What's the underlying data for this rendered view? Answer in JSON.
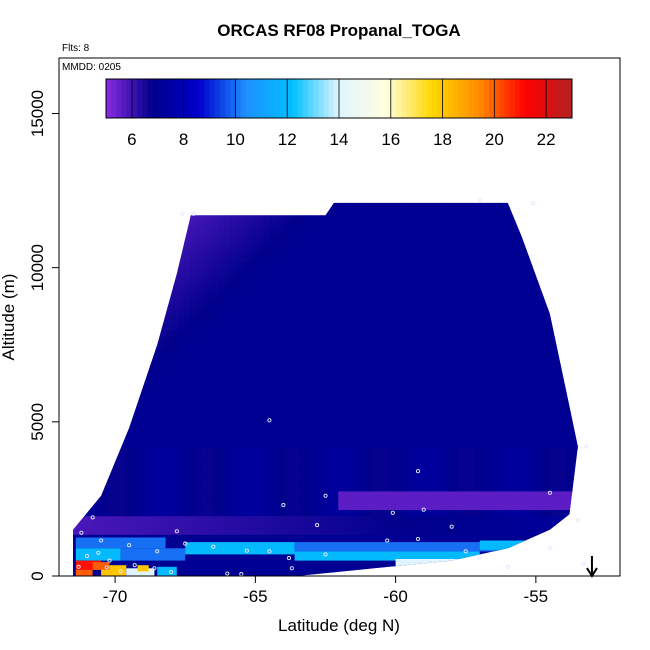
{
  "chart_data": {
    "type": "heatmap",
    "title": "ORCAS RF08 Propanal_TOGA",
    "flights_note": "Flts: 8",
    "date_note": "MMDD: 0205",
    "xlabel": "Latitude (deg N)",
    "ylabel": "Altitude (m)",
    "xlim": [
      -72,
      -52
    ],
    "ylim": [
      0,
      16800
    ],
    "x_ticks": [
      -70,
      -65,
      -60,
      -55
    ],
    "x_tick_labels": [
      "-70",
      "-65",
      "-60",
      "-55"
    ],
    "y_ticks": [
      0,
      5000,
      10000,
      15000
    ],
    "y_tick_labels": [
      "0",
      "5000",
      "10000",
      "15000"
    ],
    "colorbar": {
      "range": [
        5,
        23
      ],
      "ticks": [
        6,
        8,
        10,
        12,
        14,
        16,
        18,
        20,
        22
      ],
      "tick_labels": [
        "6",
        "8",
        "10",
        "12",
        "14",
        "16",
        "18",
        "20",
        "22"
      ],
      "colors": [
        "#8a2be2",
        "#00008b",
        "#0000cd",
        "#1e90ff",
        "#00bfff",
        "#e0f4ff",
        "#ffffe0",
        "#ffd700",
        "#ff8c00",
        "#ff0000",
        "#b22222"
      ]
    },
    "field_region": {
      "description": "interpolated curtain",
      "top_boundary": [
        [
          -71.5,
          1500
        ],
        [
          -70.5,
          2600
        ],
        [
          -69.5,
          4800
        ],
        [
          -68.5,
          7500
        ],
        [
          -67.8,
          9800
        ],
        [
          -67.3,
          11700
        ],
        [
          -62.5,
          11700
        ],
        [
          -62.2,
          12100
        ],
        [
          -56,
          12100
        ],
        [
          -55.5,
          11000
        ],
        [
          -54.5,
          8500
        ],
        [
          -53.8,
          5500
        ],
        [
          -53.5,
          4200
        ]
      ],
      "bottom_boundary": [
        [
          -53.5,
          4200
        ],
        [
          -53.8,
          2000
        ],
        [
          -54.5,
          1500
        ],
        [
          -56,
          900
        ],
        [
          -58,
          500
        ],
        [
          -63.5,
          0
        ],
        [
          -71.5,
          0
        ]
      ]
    },
    "layers": [
      {
        "name": "upper field",
        "value": 5.5
      },
      {
        "name": "core band",
        "value": 7.0
      },
      {
        "name": "low band",
        "value": 7.5
      },
      {
        "name": "boundary layer patches",
        "values": [
          10,
          12,
          14,
          18,
          20,
          21
        ]
      }
    ],
    "sample_points": [
      [
        -64.5,
        5050
      ],
      [
        -59.2,
        3400
      ],
      [
        -62.5,
        2600
      ],
      [
        -64,
        2300
      ],
      [
        -60.1,
        2050
      ],
      [
        -59,
        2150
      ],
      [
        -54.5,
        2700
      ],
      [
        -53.5,
        1800
      ],
      [
        -58,
        1600
      ],
      [
        -62.8,
        1650
      ],
      [
        -67.8,
        1450
      ],
      [
        -70.8,
        1900
      ],
      [
        -71.2,
        1400
      ],
      [
        -70.5,
        1150
      ],
      [
        -69.5,
        1000
      ],
      [
        -68.5,
        800
      ],
      [
        -67.5,
        1050
      ],
      [
        -66.5,
        950
      ],
      [
        -65.3,
        820
      ],
      [
        -64.5,
        800
      ],
      [
        -63.8,
        580
      ],
      [
        -62.5,
        700
      ],
      [
        -60.3,
        1150
      ],
      [
        -59.2,
        1200
      ],
      [
        -57.5,
        800
      ],
      [
        -57,
        600
      ],
      [
        -56,
        300
      ],
      [
        -54.5,
        900
      ],
      [
        -53.3,
        400
      ],
      [
        -53.2,
        4200
      ],
      [
        -55.1,
        12100
      ],
      [
        -57,
        12200
      ],
      [
        -67.2,
        11750
      ],
      [
        -67.6,
        11750
      ],
      [
        -70.2,
        500
      ],
      [
        -69.8,
        150
      ],
      [
        -69.5,
        100
      ],
      [
        -71.3,
        300
      ],
      [
        -70.3,
        280
      ],
      [
        -69.3,
        350
      ],
      [
        -68.6,
        250
      ],
      [
        -68.0,
        130
      ],
      [
        -66.0,
        80
      ],
      [
        -65.5,
        60
      ],
      [
        -63.7,
        250
      ],
      [
        -71.0,
        650
      ],
      [
        -70.6,
        750
      ]
    ],
    "arrow": {
      "latitude": -53.0,
      "direction": "down"
    }
  }
}
